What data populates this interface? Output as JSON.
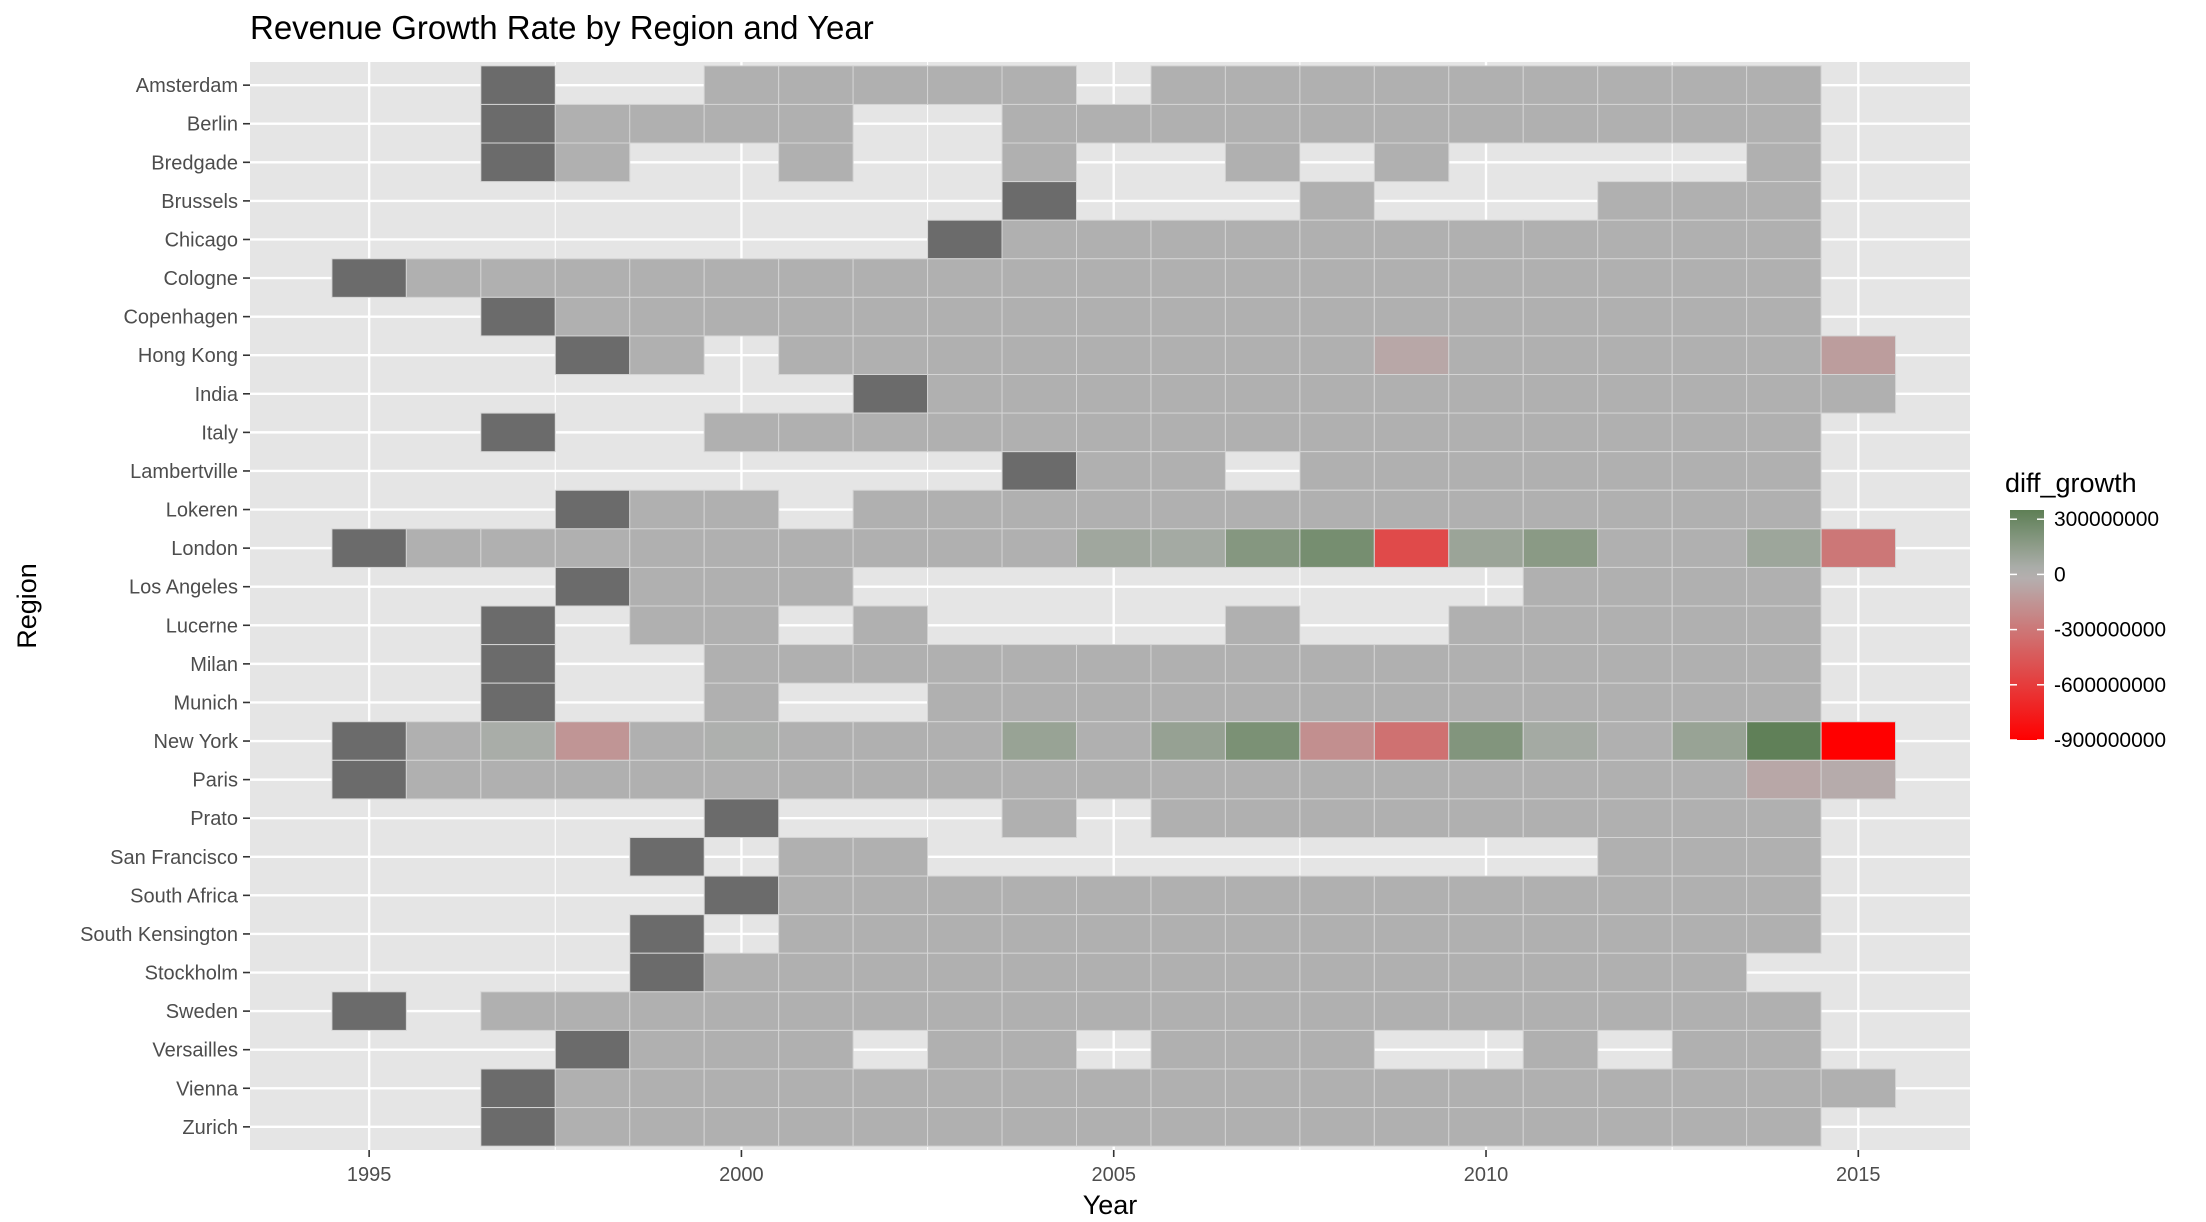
{
  "chart_data": {
    "type": "heatmap",
    "title": "Revenue Growth Rate by Region and Year",
    "xlabel": "Year",
    "ylabel": "Region",
    "x_ticks": [
      1995,
      2000,
      2005,
      2010,
      2015
    ],
    "xlim": [
      1993.4,
      2016.5
    ],
    "regions": [
      "Amsterdam",
      "Berlin",
      "Bredgade",
      "Brussels",
      "Chicago",
      "Cologne",
      "Copenhagen",
      "Hong Kong",
      "India",
      "Italy",
      "Lambertville",
      "Lokeren",
      "London",
      "Los Angeles",
      "Lucerne",
      "Milan",
      "Munich",
      "New York",
      "Paris",
      "Prato",
      "San Francisco",
      "South Africa",
      "South Kensington",
      "Stockholm",
      "Sweden",
      "Versailles",
      "Vienna",
      "Zurich"
    ],
    "first_year_color": "#6b6b6b",
    "neutral_color": "#b0b0b0",
    "legend": {
      "title": "diff_growth",
      "labels": [
        "300000000",
        "0",
        "-300000000",
        "-600000000",
        "-900000000"
      ],
      "breaks": [
        300000000,
        0,
        -300000000,
        -600000000,
        -900000000
      ],
      "range": [
        -900000000,
        350000000
      ],
      "colors": {
        "high": "#5e7f55",
        "mid": "#b3b3b3",
        "low": "#ff0000"
      }
    },
    "rows": {
      "Amsterdam": {
        "start": 1997,
        "years": [
          2000,
          2001,
          2002,
          2003,
          2004,
          2006,
          2007,
          2008,
          2009,
          2010,
          2011,
          2012,
          2013,
          2014
        ],
        "values": {}
      },
      "Berlin": {
        "start": 1997,
        "years": [
          1998,
          1999,
          2000,
          2001,
          2004,
          2005,
          2006,
          2007,
          2008,
          2009,
          2010,
          2011,
          2012,
          2013,
          2014
        ],
        "values": {}
      },
      "Bredgade": {
        "start": 1997,
        "years": [
          1998,
          2001,
          2004,
          2007,
          2009,
          2014
        ],
        "values": {}
      },
      "Brussels": {
        "start": 2004,
        "years": [
          2008,
          2012,
          2013,
          2014
        ],
        "values": {}
      },
      "Chicago": {
        "start": 2003,
        "years": [
          2004,
          2005,
          2006,
          2007,
          2008,
          2009,
          2010,
          2011,
          2012,
          2013,
          2014
        ],
        "values": {}
      },
      "Cologne": {
        "start": 1995,
        "years": [
          1996,
          1997,
          1998,
          1999,
          2000,
          2001,
          2002,
          2003,
          2004,
          2005,
          2006,
          2007,
          2008,
          2009,
          2010,
          2011,
          2012,
          2013,
          2014
        ],
        "values": {}
      },
      "Copenhagen": {
        "start": 1997,
        "years": [
          1998,
          1999,
          2000,
          2001,
          2002,
          2003,
          2004,
          2005,
          2006,
          2007,
          2008,
          2009,
          2010,
          2011,
          2012,
          2013,
          2014
        ],
        "values": {}
      },
      "Hong Kong": {
        "start": 1998,
        "years": [
          1999,
          2001,
          2002,
          2003,
          2004,
          2005,
          2006,
          2007,
          2008,
          2009,
          2010,
          2011,
          2012,
          2013,
          2014,
          2015
        ],
        "values": {
          "2009": -60000000,
          "2015": -110000000
        }
      },
      "India": {
        "start": 2002,
        "years": [
          2003,
          2004,
          2005,
          2006,
          2007,
          2008,
          2009,
          2010,
          2011,
          2012,
          2013,
          2014,
          2015
        ],
        "values": {}
      },
      "Italy": {
        "start": 1997,
        "years": [
          2000,
          2001,
          2002,
          2003,
          2004,
          2005,
          2006,
          2007,
          2008,
          2009,
          2010,
          2011,
          2012,
          2013,
          2014
        ],
        "values": {}
      },
      "Lambertville": {
        "start": 2004,
        "years": [
          2005,
          2006,
          2008,
          2009,
          2010,
          2011,
          2012,
          2013,
          2014
        ],
        "values": {}
      },
      "Lokeren": {
        "start": 1998,
        "years": [
          1999,
          2000,
          2002,
          2003,
          2004,
          2005,
          2006,
          2007,
          2008,
          2009,
          2010,
          2011,
          2012,
          2013,
          2014
        ],
        "values": {}
      },
      "London": {
        "start": 1995,
        "years": [
          1996,
          1997,
          1998,
          1999,
          2000,
          2001,
          2002,
          2003,
          2004,
          2005,
          2006,
          2007,
          2008,
          2009,
          2010,
          2011,
          2012,
          2013,
          2014,
          2015
        ],
        "values": {
          "2005": 80000000,
          "2006": 60000000,
          "2007": 190000000,
          "2008": 250000000,
          "2009": -530000000,
          "2010": 100000000,
          "2011": 170000000,
          "2014": 90000000,
          "2015": -300000000
        }
      },
      "Los Angeles": {
        "start": 1998,
        "years": [
          1999,
          2000,
          2001,
          2011,
          2012,
          2013,
          2014
        ],
        "values": {}
      },
      "Lucerne": {
        "start": 1997,
        "years": [
          1999,
          2000,
          2002,
          2007,
          2010,
          2011,
          2012,
          2013,
          2014
        ],
        "values": {}
      },
      "Milan": {
        "start": 1997,
        "years": [
          2000,
          2001,
          2002,
          2003,
          2004,
          2005,
          2006,
          2007,
          2008,
          2009,
          2010,
          2011,
          2012,
          2013,
          2014
        ],
        "values": {}
      },
      "Munich": {
        "start": 1997,
        "years": [
          2000,
          2003,
          2004,
          2005,
          2006,
          2007,
          2008,
          2009,
          2010,
          2011,
          2012,
          2013,
          2014
        ],
        "values": {}
      },
      "New York": {
        "start": 1995,
        "years": [
          1996,
          1997,
          1998,
          1999,
          2000,
          2001,
          2002,
          2003,
          2004,
          2005,
          2006,
          2007,
          2008,
          2009,
          2010,
          2011,
          2012,
          2013,
          2014,
          2015
        ],
        "values": {
          "1997": 40000000,
          "1998": -150000000,
          "2000": 20000000,
          "2004": 110000000,
          "2006": 120000000,
          "2007": 230000000,
          "2008": -180000000,
          "2009": -330000000,
          "2010": 200000000,
          "2011": 60000000,
          "2013": 110000000,
          "2014": 340000000,
          "2015": -900000000
        }
      },
      "Paris": {
        "start": 1995,
        "years": [
          1996,
          1997,
          1998,
          1999,
          2000,
          2001,
          2002,
          2003,
          2004,
          2005,
          2006,
          2007,
          2008,
          2009,
          2010,
          2011,
          2012,
          2013,
          2014,
          2015
        ],
        "values": {
          "2014": -60000000,
          "2015": -40000000
        }
      },
      "Prato": {
        "start": 2000,
        "years": [
          2004,
          2006,
          2007,
          2008,
          2009,
          2010,
          2011,
          2012,
          2013,
          2014
        ],
        "values": {}
      },
      "San Francisco": {
        "start": 1999,
        "years": [
          2001,
          2002,
          2012,
          2013,
          2014
        ],
        "values": {}
      },
      "South Africa": {
        "start": 2000,
        "years": [
          2001,
          2002,
          2003,
          2004,
          2005,
          2006,
          2007,
          2008,
          2009,
          2010,
          2011,
          2012,
          2013,
          2014
        ],
        "values": {}
      },
      "South Kensington": {
        "start": 1999,
        "years": [
          2001,
          2002,
          2003,
          2004,
          2005,
          2006,
          2007,
          2008,
          2009,
          2010,
          2011,
          2012,
          2013,
          2014
        ],
        "values": {}
      },
      "Stockholm": {
        "start": 1999,
        "years": [
          2000,
          2001,
          2002,
          2003,
          2004,
          2005,
          2006,
          2007,
          2008,
          2009,
          2010,
          2011,
          2012,
          2013
        ],
        "values": {}
      },
      "Sweden": {
        "start": 1995,
        "years": [
          1997,
          1998,
          1999,
          2000,
          2001,
          2002,
          2003,
          2004,
          2005,
          2006,
          2007,
          2008,
          2009,
          2010,
          2011,
          2012,
          2013,
          2014
        ],
        "values": {}
      },
      "Versailles": {
        "start": 1998,
        "years": [
          1999,
          2000,
          2001,
          2003,
          2004,
          2006,
          2007,
          2008,
          2011,
          2013,
          2014
        ],
        "values": {}
      },
      "Vienna": {
        "start": 1997,
        "years": [
          1998,
          1999,
          2000,
          2001,
          2002,
          2003,
          2004,
          2005,
          2006,
          2007,
          2008,
          2009,
          2010,
          2011,
          2012,
          2013,
          2014,
          2015
        ],
        "values": {}
      },
      "Zurich": {
        "start": 1997,
        "years": [
          1998,
          1999,
          2000,
          2001,
          2002,
          2003,
          2004,
          2005,
          2006,
          2007,
          2008,
          2009,
          2010,
          2011,
          2012,
          2013,
          2014
        ],
        "values": {}
      }
    }
  }
}
